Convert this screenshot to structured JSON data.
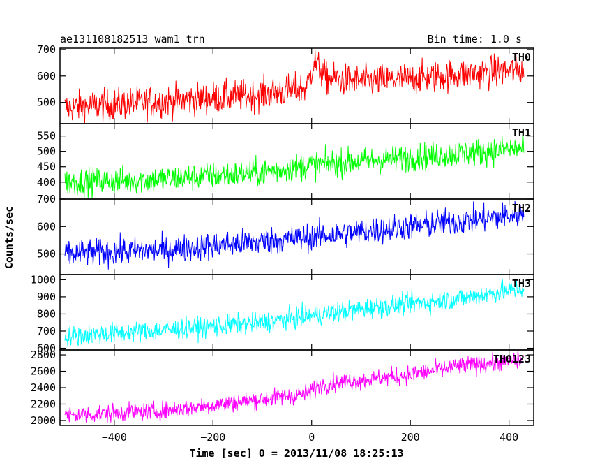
{
  "chart_data": {
    "type": "line",
    "title": "ae131108182513_wam1_trn",
    "subtitle": "Bin time: 1.0 s",
    "xlabel": "Time [sec] 0 = 2013/11/08 18:25:13",
    "ylabel": "Counts/sec",
    "xlim": [
      -510,
      450
    ],
    "x_ticks": [
      -400,
      -200,
      0,
      200,
      400
    ],
    "x_tick_labels": [
      "−400",
      "−200",
      "0",
      "200",
      "400"
    ],
    "x_range": [
      -500,
      430
    ],
    "panels": [
      {
        "name": "TH0",
        "color": "#ff0000",
        "ylim": [
          420,
          705
        ],
        "y_ticks": [
          500,
          600,
          700
        ],
        "trend": [
          [
            -500,
            480
          ],
          [
            -300,
            505
          ],
          [
            -100,
            530
          ],
          [
            -10,
            555
          ],
          [
            5,
            655
          ],
          [
            30,
            590
          ],
          [
            100,
            580
          ],
          [
            200,
            590
          ],
          [
            300,
            605
          ],
          [
            430,
            625
          ]
        ],
        "noise": 30
      },
      {
        "name": "TH1",
        "color": "#00ff00",
        "ylim": [
          345,
          590
        ],
        "y_ticks": [
          400,
          450,
          500,
          550
        ],
        "trend": [
          [
            -500,
            400
          ],
          [
            -300,
            410
          ],
          [
            -100,
            432
          ],
          [
            0,
            455
          ],
          [
            200,
            480
          ],
          [
            430,
            510
          ]
        ],
        "noise": 22
      },
      {
        "name": "TH2",
        "color": "#0000ff",
        "ylim": [
          425,
          700
        ],
        "y_ticks": [
          500,
          600,
          700
        ],
        "trend": [
          [
            -500,
            500
          ],
          [
            -300,
            515
          ],
          [
            -100,
            545
          ],
          [
            100,
            580
          ],
          [
            300,
            620
          ],
          [
            430,
            645
          ]
        ],
        "noise": 25
      },
      {
        "name": "TH3",
        "color": "#00ffff",
        "ylim": [
          590,
          1030
        ],
        "y_ticks": [
          600,
          700,
          800,
          900,
          1000
        ],
        "trend": [
          [
            -500,
            670
          ],
          [
            -300,
            705
          ],
          [
            -100,
            750
          ],
          [
            100,
            830
          ],
          [
            300,
            890
          ],
          [
            430,
            950
          ]
        ],
        "noise": 30
      },
      {
        "name": "TH0123",
        "color": "#ff00ff",
        "ylim": [
          1940,
          2860
        ],
        "y_ticks": [
          2000,
          2200,
          2400,
          2600,
          2800
        ],
        "trend": [
          [
            -500,
            2060
          ],
          [
            -300,
            2120
          ],
          [
            -100,
            2260
          ],
          [
            -10,
            2330
          ],
          [
            20,
            2440
          ],
          [
            200,
            2560
          ],
          [
            300,
            2660
          ],
          [
            430,
            2740
          ]
        ],
        "noise": 55
      }
    ],
    "grid": false,
    "legend": "panel labels top-right"
  }
}
